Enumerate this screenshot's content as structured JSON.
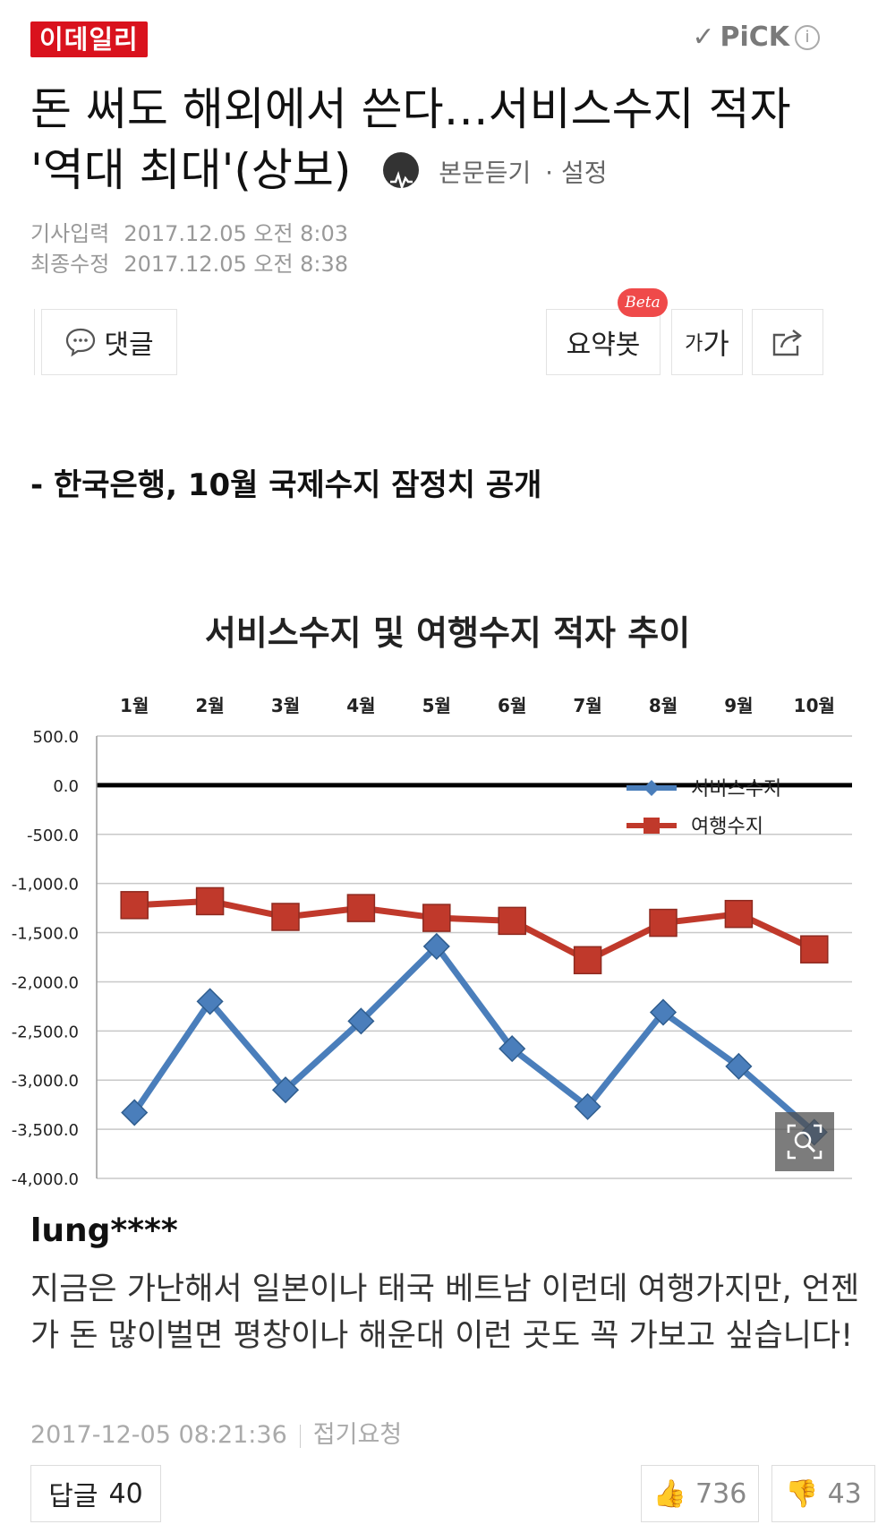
{
  "header": {
    "logo": "이데일리",
    "pick_label": "PiCK",
    "info_glyph": "i"
  },
  "article": {
    "headline_line1": "돈 써도 해외에서 쓴다…서비스수지 적자",
    "headline_line2": "'역대 최대'(상보)",
    "listen_label": "본문듣기",
    "settings_label": "· 설정",
    "input_label": "기사입력",
    "input_date": "2017.12.05 오전 8:03",
    "modified_label": "최종수정",
    "modified_date": "2017.12.05 오전 8:38",
    "subhead": "- 한국은행, 10월 국제수지 잠정치 공개"
  },
  "toolbar": {
    "comment_label": "댓글",
    "summary_label": "요약봇",
    "beta_label": "Beta",
    "font_label_small": "가",
    "font_label_large": "가"
  },
  "chart_data": {
    "type": "line",
    "title": "서비스수지 및 여행수지 적자 추이",
    "categories": [
      "1월",
      "2월",
      "3월",
      "4월",
      "5월",
      "6월",
      "7월",
      "8월",
      "9월",
      "10월"
    ],
    "yticks": [
      "500.0",
      "0.0",
      "-500.0",
      "-1,000.0",
      "-1,500.0",
      "-2,000.0",
      "-2,500.0",
      "-3,000.0",
      "-3,500.0",
      "-4,000.0"
    ],
    "ylim": [
      -4000,
      500
    ],
    "grid": true,
    "legend_position": "top-right",
    "series": [
      {
        "name": "서비스수지",
        "color": "#4a7ebb",
        "marker": "diamond",
        "values": [
          -3330,
          -2200,
          -3100,
          -2400,
          -1640,
          -2680,
          -3270,
          -2310,
          -2860,
          -3530
        ]
      },
      {
        "name": "여행수지",
        "color": "#c0392b",
        "marker": "square",
        "values": [
          -1220,
          -1180,
          -1340,
          -1250,
          -1350,
          -1380,
          -1780,
          -1400,
          -1310,
          -1670
        ]
      }
    ]
  },
  "comment": {
    "user": "lung****",
    "text": "지금은 가난해서 일본이나 태국 베트남 이런데 여행가지만, 언젠가 돈 많이벌면 평창이나 해운대 이런 곳도 꼭 가보고 싶습니다!",
    "timestamp": "2017-12-05 08:21:36",
    "report_label": "접기요청",
    "reply_label": "답글",
    "reply_count": "40",
    "like_count": "736",
    "dislike_count": "43"
  }
}
